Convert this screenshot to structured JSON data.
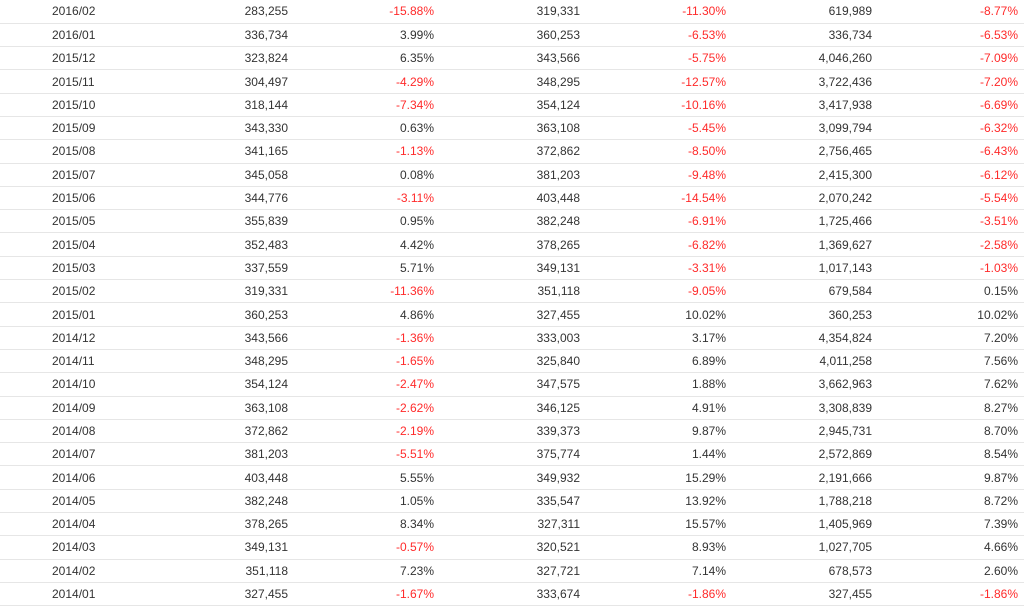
{
  "table": {
    "rows": [
      {
        "date": "2016/02",
        "v1": "283,255",
        "p1": "-15.88%",
        "v2": "319,331",
        "p2": "-11.30%",
        "v3": "619,989",
        "p3": "-8.77%"
      },
      {
        "date": "2016/01",
        "v1": "336,734",
        "p1": "3.99%",
        "v2": "360,253",
        "p2": "-6.53%",
        "v3": "336,734",
        "p3": "-6.53%"
      },
      {
        "date": "2015/12",
        "v1": "323,824",
        "p1": "6.35%",
        "v2": "343,566",
        "p2": "-5.75%",
        "v3": "4,046,260",
        "p3": "-7.09%"
      },
      {
        "date": "2015/11",
        "v1": "304,497",
        "p1": "-4.29%",
        "v2": "348,295",
        "p2": "-12.57%",
        "v3": "3,722,436",
        "p3": "-7.20%"
      },
      {
        "date": "2015/10",
        "v1": "318,144",
        "p1": "-7.34%",
        "v2": "354,124",
        "p2": "-10.16%",
        "v3": "3,417,938",
        "p3": "-6.69%"
      },
      {
        "date": "2015/09",
        "v1": "343,330",
        "p1": "0.63%",
        "v2": "363,108",
        "p2": "-5.45%",
        "v3": "3,099,794",
        "p3": "-6.32%"
      },
      {
        "date": "2015/08",
        "v1": "341,165",
        "p1": "-1.13%",
        "v2": "372,862",
        "p2": "-8.50%",
        "v3": "2,756,465",
        "p3": "-6.43%"
      },
      {
        "date": "2015/07",
        "v1": "345,058",
        "p1": "0.08%",
        "v2": "381,203",
        "p2": "-9.48%",
        "v3": "2,415,300",
        "p3": "-6.12%"
      },
      {
        "date": "2015/06",
        "v1": "344,776",
        "p1": "-3.11%",
        "v2": "403,448",
        "p2": "-14.54%",
        "v3": "2,070,242",
        "p3": "-5.54%"
      },
      {
        "date": "2015/05",
        "v1": "355,839",
        "p1": "0.95%",
        "v2": "382,248",
        "p2": "-6.91%",
        "v3": "1,725,466",
        "p3": "-3.51%"
      },
      {
        "date": "2015/04",
        "v1": "352,483",
        "p1": "4.42%",
        "v2": "378,265",
        "p2": "-6.82%",
        "v3": "1,369,627",
        "p3": "-2.58%"
      },
      {
        "date": "2015/03",
        "v1": "337,559",
        "p1": "5.71%",
        "v2": "349,131",
        "p2": "-3.31%",
        "v3": "1,017,143",
        "p3": "-1.03%"
      },
      {
        "date": "2015/02",
        "v1": "319,331",
        "p1": "-11.36%",
        "v2": "351,118",
        "p2": "-9.05%",
        "v3": "679,584",
        "p3": "0.15%"
      },
      {
        "date": "2015/01",
        "v1": "360,253",
        "p1": "4.86%",
        "v2": "327,455",
        "p2": "10.02%",
        "v3": "360,253",
        "p3": "10.02%"
      },
      {
        "date": "2014/12",
        "v1": "343,566",
        "p1": "-1.36%",
        "v2": "333,003",
        "p2": "3.17%",
        "v3": "4,354,824",
        "p3": "7.20%"
      },
      {
        "date": "2014/11",
        "v1": "348,295",
        "p1": "-1.65%",
        "v2": "325,840",
        "p2": "6.89%",
        "v3": "4,011,258",
        "p3": "7.56%"
      },
      {
        "date": "2014/10",
        "v1": "354,124",
        "p1": "-2.47%",
        "v2": "347,575",
        "p2": "1.88%",
        "v3": "3,662,963",
        "p3": "7.62%"
      },
      {
        "date": "2014/09",
        "v1": "363,108",
        "p1": "-2.62%",
        "v2": "346,125",
        "p2": "4.91%",
        "v3": "3,308,839",
        "p3": "8.27%"
      },
      {
        "date": "2014/08",
        "v1": "372,862",
        "p1": "-2.19%",
        "v2": "339,373",
        "p2": "9.87%",
        "v3": "2,945,731",
        "p3": "8.70%"
      },
      {
        "date": "2014/07",
        "v1": "381,203",
        "p1": "-5.51%",
        "v2": "375,774",
        "p2": "1.44%",
        "v3": "2,572,869",
        "p3": "8.54%"
      },
      {
        "date": "2014/06",
        "v1": "403,448",
        "p1": "5.55%",
        "v2": "349,932",
        "p2": "15.29%",
        "v3": "2,191,666",
        "p3": "9.87%"
      },
      {
        "date": "2014/05",
        "v1": "382,248",
        "p1": "1.05%",
        "v2": "335,547",
        "p2": "13.92%",
        "v3": "1,788,218",
        "p3": "8.72%"
      },
      {
        "date": "2014/04",
        "v1": "378,265",
        "p1": "8.34%",
        "v2": "327,311",
        "p2": "15.57%",
        "v3": "1,405,969",
        "p3": "7.39%"
      },
      {
        "date": "2014/03",
        "v1": "349,131",
        "p1": "-0.57%",
        "v2": "320,521",
        "p2": "8.93%",
        "v3": "1,027,705",
        "p3": "4.66%"
      },
      {
        "date": "2014/02",
        "v1": "351,118",
        "p1": "7.23%",
        "v2": "327,721",
        "p2": "7.14%",
        "v3": "678,573",
        "p3": "2.60%"
      },
      {
        "date": "2014/01",
        "v1": "327,455",
        "p1": "-1.67%",
        "v2": "333,674",
        "p2": "-1.86%",
        "v3": "327,455",
        "p3": "-1.86%"
      }
    ]
  },
  "colors": {
    "negative": "#ff2a2a",
    "positive": "#333333",
    "row_border": "#e6e6e6"
  }
}
